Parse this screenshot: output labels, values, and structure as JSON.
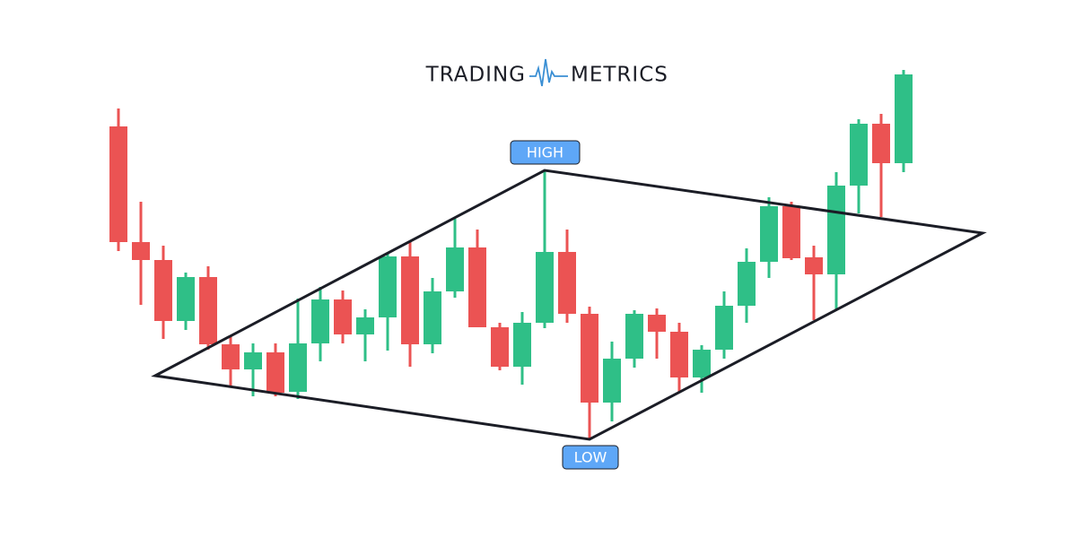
{
  "chart_data": {
    "type": "candlestick",
    "brand": [
      "TRADING",
      "METRICS"
    ],
    "annotations": [
      "HIGH",
      "LOW"
    ],
    "up_color": "#2fbf87",
    "down_color": "#eb5353",
    "ylim": [
      0,
      619
    ],
    "open": [
      478,
      349,
      329,
      261,
      310,
      235,
      207,
      226,
      182,
      236,
      285,
      246,
      265,
      333,
      235,
      294,
      343,
      254,
      210,
      259,
      338,
      269,
      170,
      219,
      268,
      249,
      198,
      229,
      278,
      327,
      389,
      332,
      313,
      412,
      481,
      437
    ],
    "high": [
      498,
      394,
      345,
      315,
      322,
      244,
      236,
      236,
      286,
      299,
      295,
      274,
      336,
      349,
      309,
      375,
      363,
      259,
      271,
      429,
      363,
      277,
      238,
      273,
      275,
      259,
      234,
      294,
      342,
      399,
      394,
      345,
      427,
      486,
      492,
      541
    ],
    "low": [
      339,
      279,
      241,
      251,
      229,
      187,
      177,
      177,
      174,
      216,
      236,
      216,
      228,
      210,
      225,
      287,
      254,
      206,
      190,
      253,
      259,
      129,
      149,
      209,
      219,
      182,
      181,
      219,
      259,
      309,
      329,
      262,
      274,
      381,
      377,
      427
    ],
    "close": [
      349,
      329,
      261,
      310,
      235,
      207,
      226,
      181,
      236,
      285,
      246,
      265,
      333,
      235,
      294,
      343,
      254,
      210,
      259,
      338,
      269,
      170,
      219,
      269,
      249,
      198,
      229,
      278,
      327,
      389,
      331,
      313,
      412,
      481,
      437,
      536
    ]
  }
}
